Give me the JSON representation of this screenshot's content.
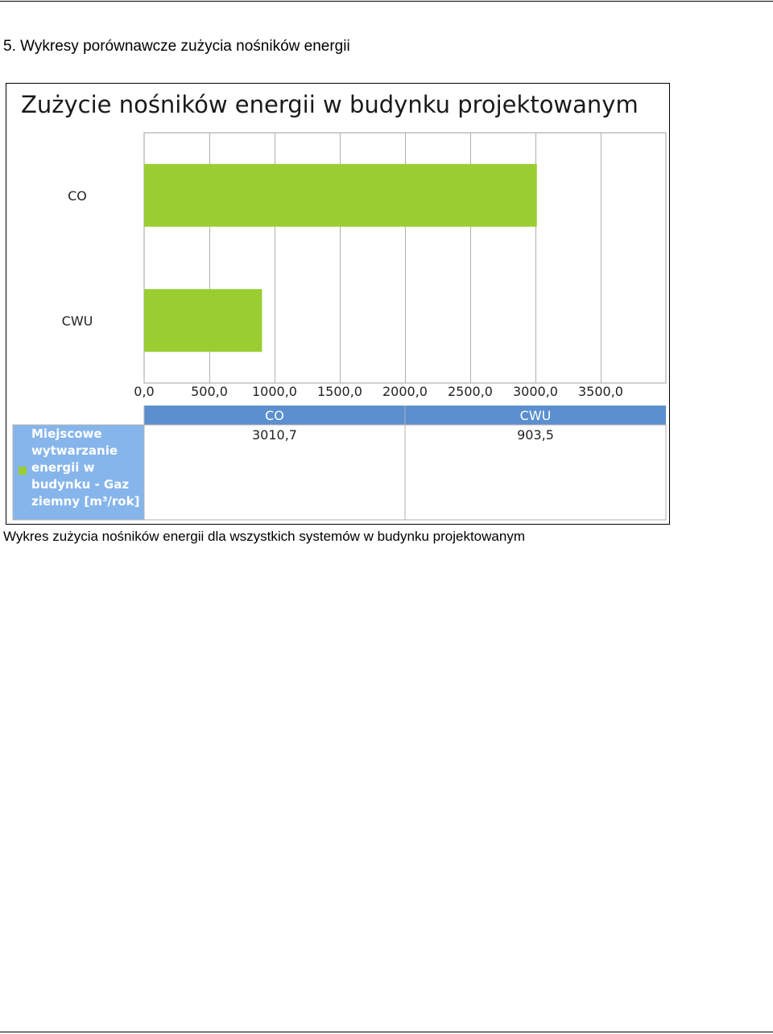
{
  "document": {
    "heading": "5. Wykresy porównawcze zużycia nośników energii",
    "caption": "Wykres zużycia nośników energii dla wszystkich systemów w budynku projektowanym"
  },
  "chart_data": {
    "type": "bar",
    "orientation": "horizontal",
    "title": "Zużycie nośników energii w budynku projektowanym",
    "categories": [
      "CO",
      "CWU"
    ],
    "series": [
      {
        "name": "Miejscowe wytwarzanie energii w budynku - Gaz ziemny [m³/rok]",
        "values": [
          3010.7,
          903.5
        ]
      }
    ],
    "value_labels": [
      "3010,7",
      "903,5"
    ],
    "xlim": [
      0,
      4000
    ],
    "ticks": [
      0,
      500,
      1000,
      1500,
      2000,
      2500,
      3000,
      3500
    ],
    "tick_labels": [
      "0,0",
      "500,0",
      "1000,0",
      "1500,0",
      "2000,0",
      "2500,0",
      "3000,0",
      "3500,0"
    ],
    "grid": true,
    "legend_placement": "bottom-left data table",
    "legend_lines": [
      "Miejscowe",
      "wytwarzanie",
      "energii w",
      "budynku - Gaz",
      "ziemny [m³/rok]"
    ],
    "colors": {
      "bar": "#9ACD32",
      "table_header": "#5B8FCF",
      "legend_bg": "#86B5EB"
    }
  }
}
